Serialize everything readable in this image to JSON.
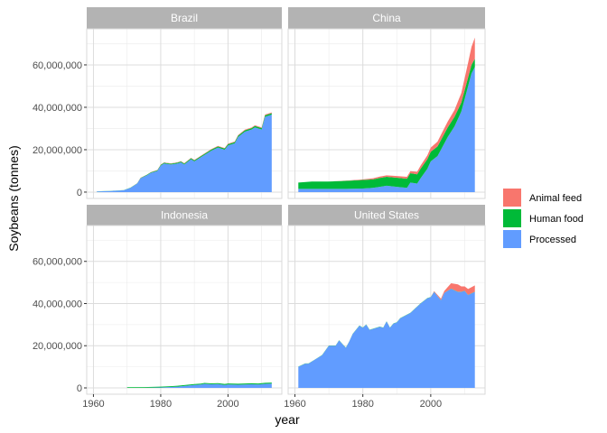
{
  "chart_data": {
    "type": "area",
    "stacked": true,
    "facet_layout": "2x2",
    "xlabel": "year",
    "ylabel": "Soybeans (tonnes)",
    "xlim": [
      1958,
      2016
    ],
    "ylim": [
      -3000000,
      77000000
    ],
    "x_ticks": [
      1960,
      1980,
      2000
    ],
    "x_tick_labels": [
      "1960",
      "1980",
      "2000"
    ],
    "y_ticks": [
      0,
      20000000,
      40000000,
      60000000
    ],
    "y_tick_labels": [
      "0",
      "20,000,000",
      "40,000,000",
      "60,000,000"
    ],
    "grid": true,
    "legend_position": "right",
    "legend": [
      {
        "name": "Animal feed",
        "color": "#F8766D"
      },
      {
        "name": "Human food",
        "color": "#00BA38"
      },
      {
        "name": "Processed",
        "color": "#619CFF"
      }
    ],
    "stack_order": [
      "Processed",
      "Human food",
      "Animal feed"
    ],
    "facets": [
      {
        "name": "Brazil",
        "x": [
          1961,
          1965,
          1969,
          1971,
          1973,
          1974,
          1976,
          1977,
          1979,
          1980,
          1981,
          1983,
          1985,
          1986,
          1987,
          1989,
          1990,
          1992,
          1995,
          1997,
          1999,
          2000,
          2002,
          2003,
          2005,
          2007,
          2008,
          2010,
          2011,
          2013
        ],
        "series": {
          "Processed": [
            300000,
            500000,
            900000,
            2000000,
            4000000,
            6500000,
            8000000,
            9000000,
            10000000,
            12500000,
            13500000,
            13000000,
            13500000,
            14000000,
            13000000,
            15500000,
            14500000,
            16500000,
            19500000,
            21000000,
            20000000,
            22000000,
            23000000,
            26000000,
            28500000,
            29500000,
            30500000,
            29500000,
            35500000,
            36500000
          ],
          "Human food": [
            30000,
            40000,
            60000,
            100000,
            150000,
            200000,
            250000,
            300000,
            320000,
            350000,
            380000,
            400000,
            420000,
            440000,
            450000,
            470000,
            480000,
            500000,
            520000,
            540000,
            560000,
            580000,
            600000,
            620000,
            640000,
            660000,
            680000,
            700000,
            720000,
            740000
          ],
          "Animal feed": [
            0,
            0,
            0,
            0,
            50000,
            80000,
            100000,
            100000,
            120000,
            130000,
            140000,
            150000,
            160000,
            170000,
            180000,
            190000,
            200000,
            210000,
            220000,
            230000,
            240000,
            250000,
            260000,
            280000,
            300000,
            310000,
            320000,
            330000,
            340000,
            350000
          ]
        }
      },
      {
        "name": "China",
        "x": [
          1961,
          1965,
          1970,
          1975,
          1980,
          1983,
          1985,
          1987,
          1990,
          1993,
          1994,
          1996,
          1997,
          1999,
          2000,
          2002,
          2003,
          2005,
          2007,
          2009,
          2011,
          2012,
          2013
        ],
        "series": {
          "Processed": [
            1500000,
            1500000,
            1500000,
            1500000,
            1700000,
            2000000,
            2500000,
            3000000,
            2500000,
            2000000,
            4500000,
            4000000,
            6500000,
            11000000,
            14500000,
            17000000,
            20000000,
            26000000,
            31000000,
            38000000,
            50000000,
            56000000,
            59000000
          ],
          "Human food": [
            3000000,
            3500000,
            3500000,
            3800000,
            4000000,
            4000000,
            4200000,
            4200000,
            4300000,
            4300000,
            4400000,
            4400000,
            4500000,
            4500000,
            4500000,
            4500000,
            4500000,
            4500000,
            4500000,
            4200000,
            4000000,
            4000000,
            3900000
          ],
          "Animal feed": [
            0,
            0,
            0,
            100000,
            300000,
            500000,
            600000,
            700000,
            800000,
            900000,
            1000000,
            1200000,
            1500000,
            1800000,
            2000000,
            2300000,
            2500000,
            2800000,
            3200000,
            4500000,
            7000000,
            8500000,
            10000000
          ]
        }
      },
      {
        "name": "Indonesia",
        "x": [
          1970,
          1975,
          1980,
          1983,
          1985,
          1987,
          1990,
          1992,
          1993,
          1995,
          1997,
          1999,
          2000,
          2003,
          2005,
          2007,
          2009,
          2011,
          2013
        ],
        "series": {
          "Processed": [
            0,
            50000,
            200000,
            400000,
            600000,
            900000,
            1400000,
            1600000,
            1900000,
            1700000,
            1800000,
            1400000,
            1600000,
            1500000,
            1600000,
            1700000,
            1600000,
            1900000,
            2000000
          ],
          "Human food": [
            300000,
            330000,
            360000,
            380000,
            400000,
            410000,
            420000,
            430000,
            440000,
            450000,
            460000,
            470000,
            480000,
            480000,
            480000,
            490000,
            490000,
            500000,
            500000
          ],
          "Animal feed": [
            0,
            0,
            0,
            0,
            0,
            0,
            0,
            0,
            0,
            0,
            0,
            0,
            0,
            0,
            0,
            0,
            0,
            0,
            0
          ]
        }
      },
      {
        "name": "United States",
        "x": [
          1961,
          1963,
          1964,
          1966,
          1968,
          1970,
          1972,
          1973,
          1975,
          1976,
          1977,
          1979,
          1980,
          1981,
          1982,
          1985,
          1986,
          1987,
          1988,
          1989,
          1990,
          1991,
          1994,
          1995,
          1997,
          1999,
          2000,
          2001,
          2002,
          2003,
          2004,
          2006,
          2008,
          2009,
          2010,
          2011,
          2013
        ],
        "series": {
          "Processed": [
            10000000,
            11500000,
            11500000,
            13500000,
            15500000,
            20000000,
            20000000,
            22500000,
            19000000,
            22000000,
            25500000,
            29500000,
            28500000,
            30000000,
            27500000,
            29000000,
            28500000,
            31500000,
            28500000,
            30500000,
            31000000,
            33000000,
            35500000,
            37000000,
            40000000,
            42500000,
            43000000,
            45500000,
            43500000,
            41500000,
            45000000,
            47000000,
            45500000,
            45500000,
            46000000,
            44000000,
            45500000
          ],
          "Human food": [
            100000,
            100000,
            100000,
            100000,
            100000,
            100000,
            100000,
            100000,
            100000,
            100000,
            100000,
            100000,
            100000,
            100000,
            100000,
            100000,
            100000,
            100000,
            100000,
            100000,
            100000,
            100000,
            100000,
            100000,
            100000,
            100000,
            100000,
            100000,
            100000,
            100000,
            100000,
            100000,
            100000,
            100000,
            100000,
            100000,
            100000
          ],
          "Animal feed": [
            0,
            0,
            0,
            0,
            0,
            0,
            0,
            0,
            0,
            0,
            0,
            0,
            0,
            0,
            0,
            0,
            0,
            0,
            0,
            0,
            0,
            0,
            0,
            0,
            0,
            0,
            0,
            300000,
            500000,
            700000,
            900000,
            2500000,
            3500000,
            2500000,
            2000000,
            2800000,
            3000000
          ]
        }
      }
    ]
  }
}
